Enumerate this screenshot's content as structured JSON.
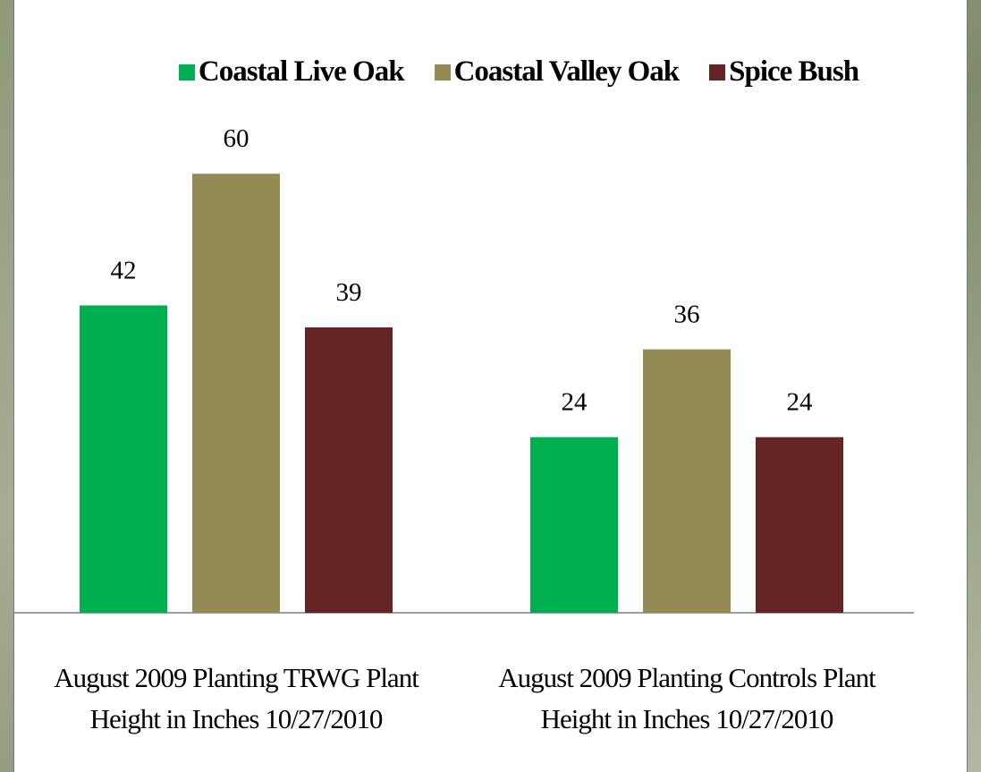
{
  "chart_data": {
    "type": "bar",
    "categories": [
      "August 2009 Planting TRWG Plant Height in Inches 10/27/2010",
      "August 2009 Planting Controls Plant Height in Inches 10/27/2010"
    ],
    "series": [
      {
        "name": "Coastal Live Oak",
        "color": "#00b050",
        "values": [
          42,
          24
        ]
      },
      {
        "name": "Coastal Valley Oak",
        "color": "#948a54",
        "values": [
          60,
          36
        ]
      },
      {
        "name": "Spice Bush",
        "color": "#632423",
        "values": [
          39,
          24
        ]
      }
    ],
    "legend": "top"
  }
}
